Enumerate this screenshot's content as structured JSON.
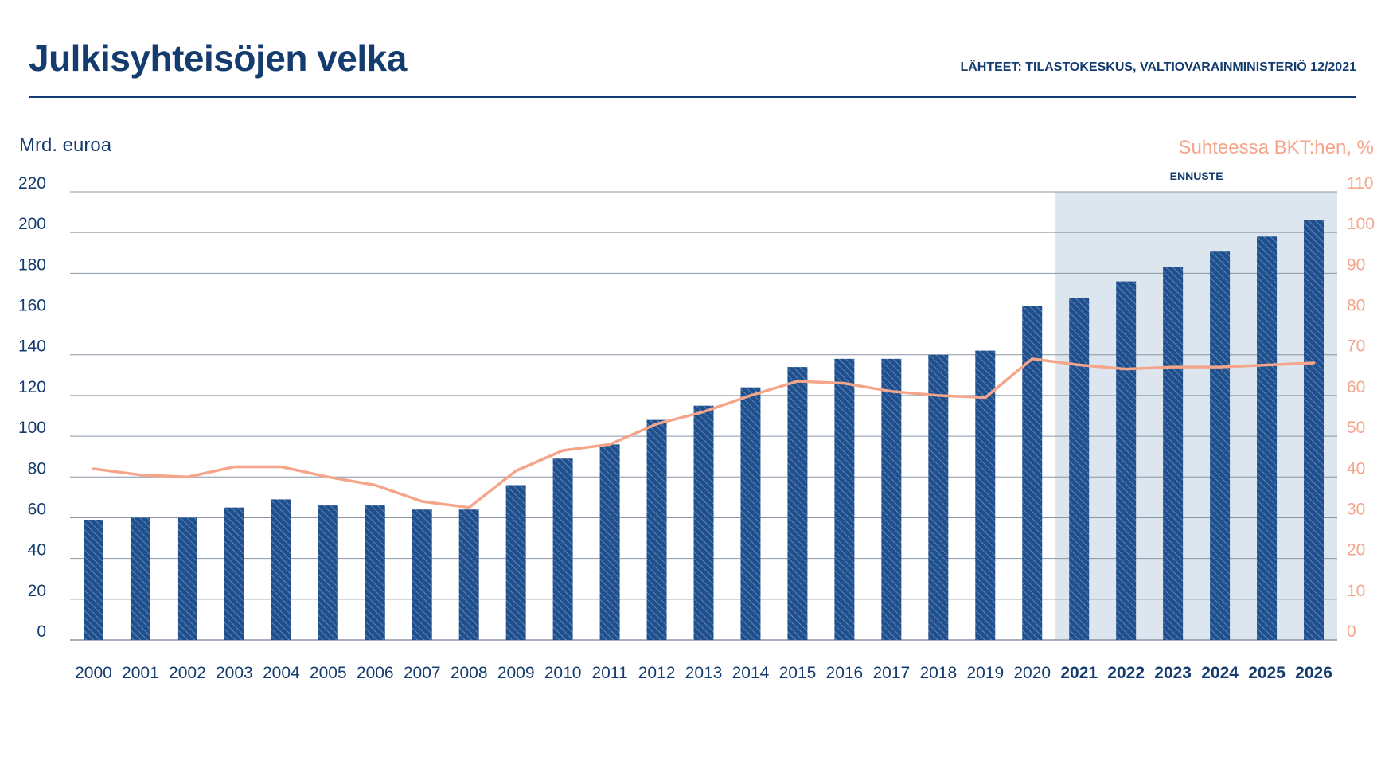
{
  "header": {
    "title": "Julkisyhteisöjen velka",
    "source": "LÄHTEET: TILASTOKESKUS, VALTIOVARAINMINISTERIÖ 12/2021"
  },
  "colors": {
    "bar": "#1f4f8c",
    "bar_hatch": "#6f94c4",
    "line": "#f4a58a",
    "text": "#143c6e",
    "forecast_bg": "#dde5ee",
    "grid": "#8a96a8"
  },
  "chart_data": {
    "type": "bar",
    "forecast_label": "ENNUSTE",
    "forecast_from": "2021",
    "categories": [
      "2000",
      "2001",
      "2002",
      "2003",
      "2004",
      "2005",
      "2006",
      "2007",
      "2008",
      "2009",
      "2010",
      "2011",
      "2012",
      "2013",
      "2014",
      "2015",
      "2016",
      "2017",
      "2018",
      "2019",
      "2020",
      "2021",
      "2022",
      "2023",
      "2024",
      "2025",
      "2026"
    ],
    "series": [
      {
        "type": "bar",
        "axis": "left",
        "values": [
          59,
          60,
          60,
          65,
          69,
          66,
          66,
          64,
          64,
          76,
          89,
          96,
          108,
          115,
          124,
          134,
          138,
          138,
          140,
          142,
          164,
          168,
          176,
          183,
          191,
          198,
          206
        ]
      },
      {
        "type": "line",
        "axis": "right",
        "values": [
          42.0,
          40.5,
          40.0,
          42.5,
          42.5,
          40.0,
          38.0,
          34.0,
          32.5,
          41.5,
          46.5,
          48.0,
          53.0,
          56.0,
          60.0,
          63.5,
          63.0,
          61.0,
          60.0,
          59.5,
          69.0,
          67.5,
          66.5,
          67.0,
          67.0,
          67.5,
          68.0
        ]
      }
    ],
    "yaxis_left": {
      "label": "Mrd. euroa",
      "min": 0,
      "max": 220,
      "ticks": [
        0,
        20,
        40,
        60,
        80,
        100,
        120,
        140,
        160,
        180,
        200,
        220
      ]
    },
    "yaxis_right": {
      "label": "Suhteessa BKT:hen, %",
      "min": 0,
      "max": 110,
      "ticks": [
        0,
        10,
        20,
        30,
        40,
        50,
        60,
        70,
        80,
        90,
        100,
        110
      ]
    },
    "grid": true
  }
}
